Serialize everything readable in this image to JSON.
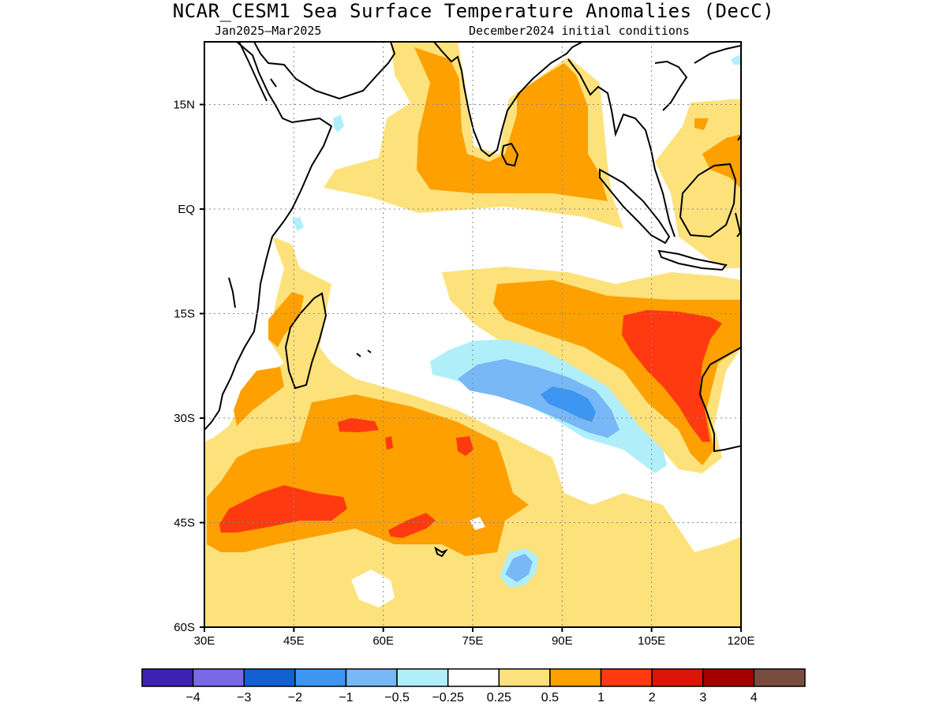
{
  "header": {
    "title": "NCAR_CESM1 Sea Surface Temperature Anomalies (DecC)",
    "period": "Jan2025–Mar2025",
    "init": "December2024 initial conditions"
  },
  "map": {
    "lon_range": [
      30,
      120
    ],
    "lat_range": [
      -60,
      24
    ],
    "lon_ticks": [
      {
        "value": 30,
        "label": "30E"
      },
      {
        "value": 45,
        "label": "45E"
      },
      {
        "value": 60,
        "label": "60E"
      },
      {
        "value": 75,
        "label": "75E"
      },
      {
        "value": 90,
        "label": "90E"
      },
      {
        "value": 105,
        "label": "105E"
      },
      {
        "value": 120,
        "label": "120E"
      }
    ],
    "lat_ticks": [
      {
        "value": 15,
        "label": "15N"
      },
      {
        "value": 0,
        "label": "EQ"
      },
      {
        "value": -15,
        "label": "15S"
      },
      {
        "value": -30,
        "label": "30S"
      },
      {
        "value": -45,
        "label": "45S"
      },
      {
        "value": -60,
        "label": "60S"
      }
    ],
    "grid": "dotted"
  },
  "colorbar": {
    "colors": [
      "#3b22b2",
      "#7b68e8",
      "#1560d0",
      "#3c96f2",
      "#78b8f6",
      "#b0effa",
      "#ffffff",
      "#fde27c",
      "#fda000",
      "#ff3a10",
      "#dd1508",
      "#a50000",
      "#7a4c40"
    ],
    "labels": [
      "−4",
      "−3",
      "−2",
      "−1",
      "−0.5",
      "−0.25",
      "0.25",
      "0.5",
      "1",
      "2",
      "3",
      "4"
    ]
  }
}
